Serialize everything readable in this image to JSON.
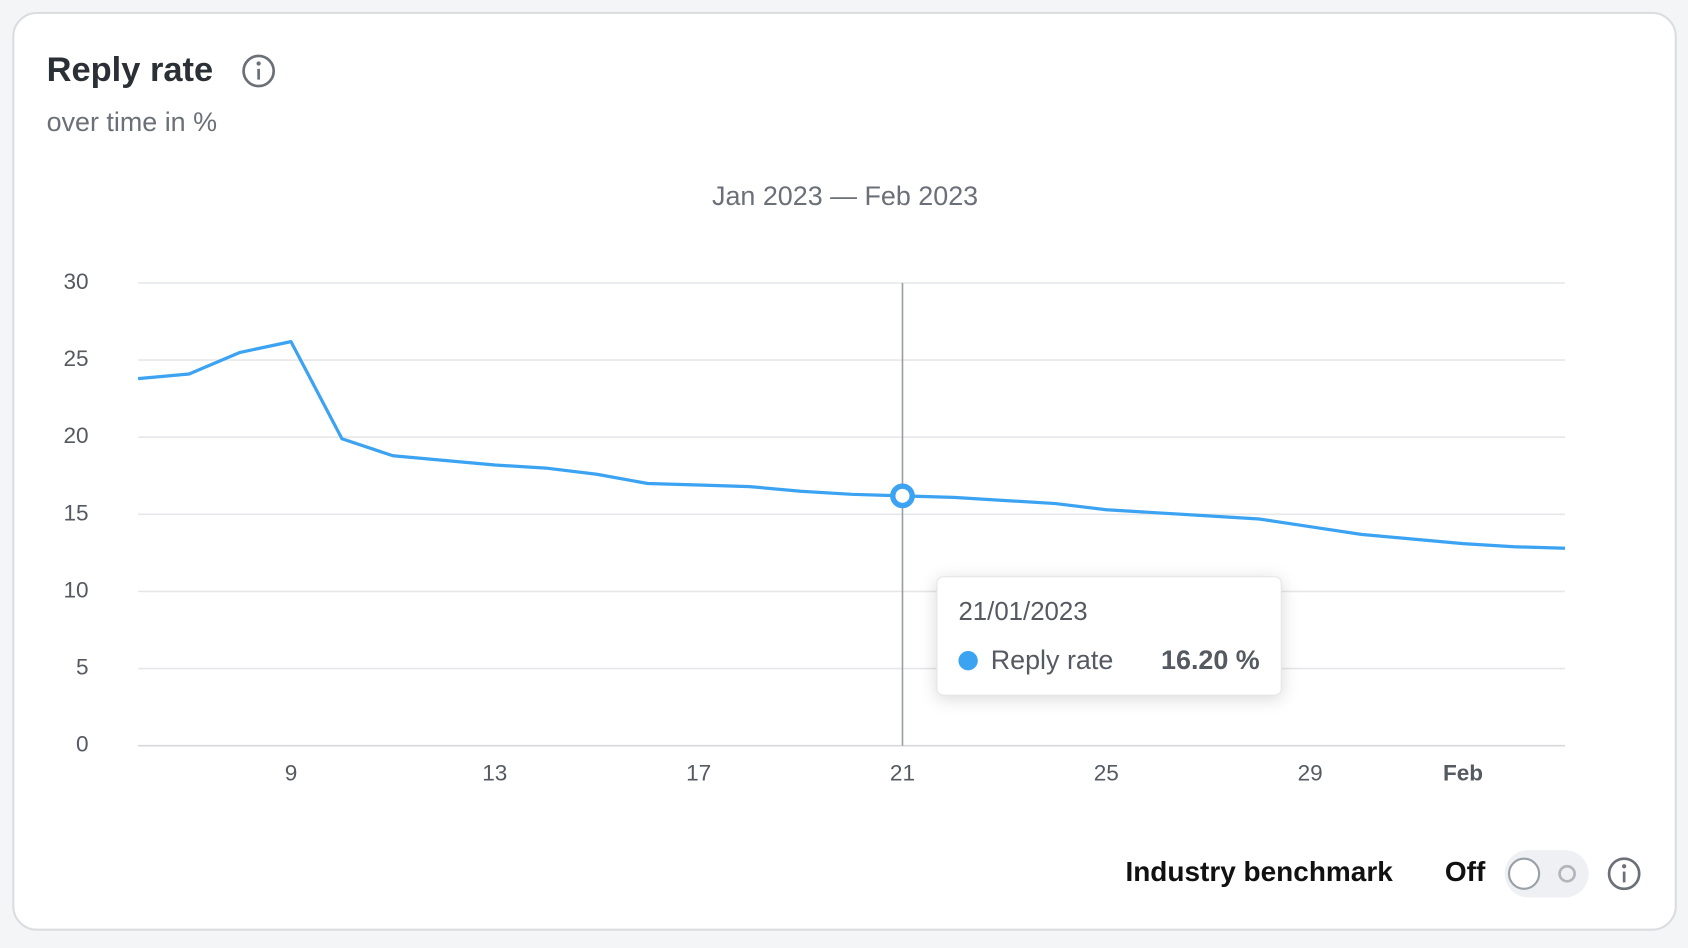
{
  "chart_data": {
    "type": "line",
    "title": "Reply rate",
    "subtitle": "over time in %",
    "period": "Jan 2023 — Feb 2023",
    "categories": [
      null,
      null,
      null,
      "9",
      null,
      null,
      null,
      "13",
      null,
      null,
      null,
      "17",
      null,
      null,
      null,
      "21",
      null,
      null,
      null,
      "25",
      null,
      null,
      null,
      "29",
      null,
      null,
      "Feb",
      null,
      null
    ],
    "series": [
      {
        "name": "Reply rate",
        "color": "#3ba3f2",
        "values": [
          23.8,
          24.1,
          25.5,
          26.2,
          19.9,
          18.8,
          18.5,
          18.2,
          18.0,
          17.6,
          17.0,
          16.9,
          16.8,
          16.5,
          16.3,
          16.2,
          16.1,
          15.9,
          15.7,
          15.3,
          15.1,
          14.9,
          14.7,
          14.2,
          13.7,
          13.4,
          13.1,
          12.9,
          12.8
        ]
      }
    ],
    "ylim": [
      0,
      30
    ],
    "yticks": [
      0,
      5,
      10,
      15,
      20,
      25,
      30
    ],
    "grid": true,
    "tooltip": {
      "date": "21/01/2023",
      "value": 16.2,
      "value_label": "16.20 %"
    },
    "benchmark": {
      "label": "Industry benchmark",
      "state": "Off"
    }
  }
}
